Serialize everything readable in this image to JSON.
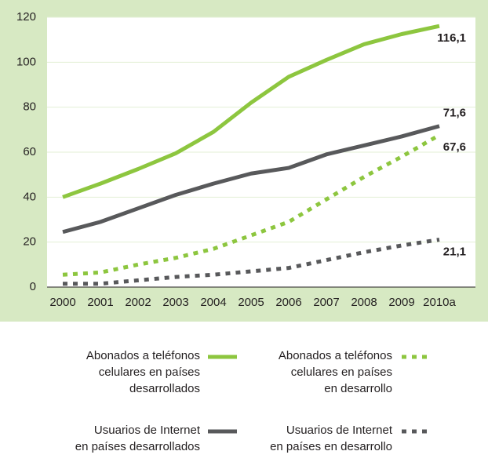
{
  "chart_data": {
    "type": "line",
    "categories": [
      "2000",
      "2001",
      "2002",
      "2003",
      "2004",
      "2005",
      "2006",
      "2007",
      "2008",
      "2009",
      "2010a"
    ],
    "ylim": [
      0,
      120
    ],
    "yticks": [
      0,
      20,
      40,
      60,
      80,
      100,
      120
    ],
    "grid": true,
    "series": [
      {
        "name": "Abonados a teléfonos\ncelulares en países\ndesarrollados",
        "color": "#8dc63f",
        "style": "solid",
        "values": [
          40,
          46,
          52.5,
          59.5,
          69,
          82,
          93.5,
          101,
          108,
          112.5,
          116.1
        ],
        "value_labels": [
          null,
          null,
          null,
          null,
          null,
          null,
          null,
          null,
          null,
          null,
          "116,1"
        ]
      },
      {
        "name": "Abonados a teléfonos\ncelulares en países\nen desarrollo",
        "color": "#8dc63f",
        "style": "dotted",
        "values": [
          5.5,
          6.5,
          10,
          13,
          17,
          23,
          29,
          39,
          49,
          58,
          67.6
        ],
        "value_labels": [
          null,
          null,
          null,
          null,
          null,
          null,
          null,
          null,
          null,
          null,
          "67,6"
        ]
      },
      {
        "name": "Usuarios de Internet\nen países desarrollados",
        "color": "#58595b",
        "style": "solid",
        "values": [
          24.5,
          29,
          35,
          41,
          46,
          50.5,
          53,
          59,
          63,
          67,
          71.6
        ],
        "value_labels": [
          null,
          null,
          null,
          null,
          null,
          null,
          null,
          null,
          null,
          null,
          "71,6"
        ]
      },
      {
        "name": "Usuarios de Internet\nen países en desarrollo",
        "color": "#58595b",
        "style": "dotted",
        "values": [
          1.5,
          1.5,
          3,
          4.5,
          5.5,
          7,
          8.5,
          12,
          15.5,
          18.5,
          21.1
        ],
        "value_labels": [
          null,
          null,
          null,
          null,
          null,
          null,
          null,
          null,
          null,
          null,
          "21,1"
        ]
      }
    ]
  }
}
